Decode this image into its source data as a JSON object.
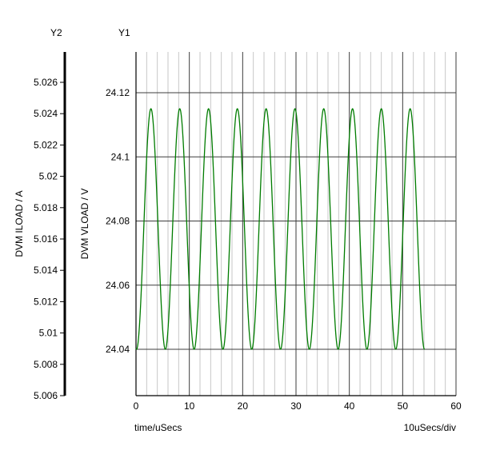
{
  "chart_data": {
    "type": "line",
    "title": "",
    "grid": true,
    "legend": "none",
    "x_axis": {
      "label": "time/uSecs",
      "div_label": "10uSecs/div",
      "min": 0,
      "max": 60,
      "major_tick_values": [
        0,
        10,
        20,
        30,
        40,
        50,
        60
      ],
      "major_tick_labels": [
        "0",
        "10",
        "20",
        "30",
        "40",
        "50",
        "60"
      ],
      "minor_step": 2
    },
    "y1_axis": {
      "name": "Y1",
      "label": "DVM VLOAD / V",
      "tick_values": [
        24.04,
        24.06,
        24.08,
        24.1,
        24.12
      ],
      "tick_labels": [
        "24.04",
        "24.06",
        "24.08",
        "24.1",
        "24.12"
      ],
      "visible_range": [
        24.0255,
        24.1327
      ]
    },
    "y2_axis": {
      "name": "Y2",
      "label": "DVM ILOAD / A",
      "tick_values": [
        5.006,
        5.008,
        5.01,
        5.012,
        5.014,
        5.016,
        5.018,
        5.02,
        5.022,
        5.024,
        5.026
      ],
      "tick_labels": [
        "5.006",
        "5.008",
        "5.01",
        "5.012",
        "5.014",
        "5.016",
        "5.018",
        "5.02",
        "5.022",
        "5.024",
        "5.026"
      ]
    },
    "series": [
      {
        "name": "DVM VLOAD",
        "axis": "y1",
        "color": "#007c00",
        "waveform": {
          "shape": "sine",
          "mean": 24.0775,
          "amplitude": 0.0375,
          "period_us": 5.4,
          "first_peak_us": 2.8,
          "t_start": 0,
          "t_end": 54.1,
          "peak_value": 24.115,
          "trough_value": 24.04
        }
      }
    ],
    "colors": {
      "trace": "#007c00",
      "grid_major": "#3c3c3c",
      "grid_minor": "#c6c6c6",
      "axis": "#000000",
      "background": "#ffffff",
      "text": "#000000"
    }
  }
}
